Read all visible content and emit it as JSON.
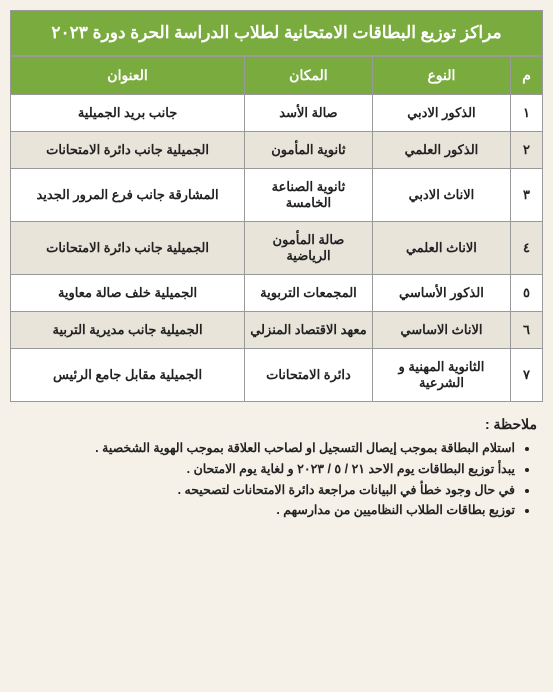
{
  "title": "مراكز توزيع البطاقات الامتحانية لطلاب الدراسة الحرة دورة ٢٠٢٣",
  "table": {
    "type": "table",
    "header_bg": "#7aab3f",
    "header_fg": "#ffffff",
    "row_odd_bg": "#ffffff",
    "row_even_bg": "#e8e4da",
    "border_color": "#999999",
    "columns": [
      {
        "key": "num",
        "label": "م",
        "width": "6%"
      },
      {
        "key": "type",
        "label": "النوع",
        "width": "26%"
      },
      {
        "key": "place",
        "label": "المكان",
        "width": "24%"
      },
      {
        "key": "address",
        "label": "العنوان",
        "width": "44%"
      }
    ],
    "rows": [
      {
        "num": "١",
        "type": "الذكور الادبي",
        "place": "صالة الأسد",
        "address": "جانب بريد الجميلية"
      },
      {
        "num": "٢",
        "type": "الذكور العلمي",
        "place": "ثانوية المأمون",
        "address": "الجميلية جانب دائرة الامتحانات"
      },
      {
        "num": "٣",
        "type": "الاناث الادبي",
        "place": "ثانوية الصناعة الخامسة",
        "address": "المشارقة جانب فرع المرور الجديد"
      },
      {
        "num": "٤",
        "type": "الاناث العلمي",
        "place": "صالة المأمون الرياضية",
        "address": "الجميلية جانب دائرة الامتحانات"
      },
      {
        "num": "٥",
        "type": "الذكور الأساسي",
        "place": "المجمعات التربوية",
        "address": "الجميلية خلف صالة معاوية"
      },
      {
        "num": "٦",
        "type": "الاناث الاساسي",
        "place": "معهد الاقتصاد المنزلي",
        "address": "الجميلية جانب مديرية التربية"
      },
      {
        "num": "٧",
        "type": "الثانوية المهنية و الشرعية",
        "place": "دائرة الامتحانات",
        "address": "الجميلية مقابل جامع الرئيس"
      }
    ]
  },
  "notes": {
    "title": "ملاحظة :",
    "items": [
      "استلام البطاقة بموجب إيصال التسجيل او لصاحب العلاقة بموجب الهوية الشخصية .",
      "يبدأ توزيع البطاقات يوم الاحد ٢١ / ٥ / ٢٠٢٣ و لغاية يوم الامتحان .",
      "في حال وجود خطأ في البيانات مراجعة دائرة الامتحانات لتصحيحه .",
      "توزيع بطاقات الطلاب النظاميين من مدارسهم ."
    ]
  },
  "colors": {
    "page_bg": "#f5f0e8",
    "accent": "#7aab3f",
    "text": "#222222"
  }
}
